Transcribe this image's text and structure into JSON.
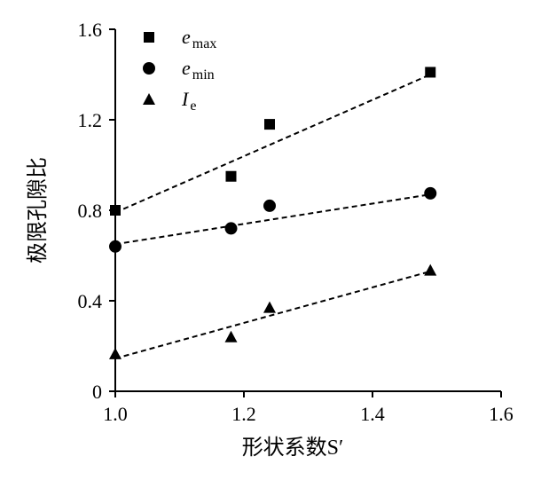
{
  "chart_data": {
    "type": "scatter",
    "title": "",
    "xlabel": "形状系数S′",
    "ylabel": "极限孔隙比",
    "xlim": [
      1.0,
      1.6
    ],
    "ylim": [
      0,
      1.6
    ],
    "xticks": [
      "1.0",
      "1.2",
      "1.4",
      "1.6"
    ],
    "yticks": [
      "0",
      "0.4",
      "0.8",
      "1.2",
      "1.6"
    ],
    "xtick_values": [
      1.0,
      1.2,
      1.4,
      1.6
    ],
    "ytick_values": [
      0,
      0.4,
      0.8,
      1.2,
      1.6
    ],
    "grid": false,
    "legend_placement": "top-left",
    "series": [
      {
        "name": "e",
        "sub": "max",
        "marker": "square",
        "x": [
          1.0,
          1.18,
          1.24,
          1.49
        ],
        "y": [
          0.8,
          0.95,
          1.18,
          1.41
        ],
        "trend": [
          [
            1.0,
            0.79
          ],
          [
            1.49,
            1.4
          ]
        ]
      },
      {
        "name": "e",
        "sub": "min",
        "marker": "circle",
        "x": [
          1.0,
          1.18,
          1.24,
          1.49
        ],
        "y": [
          0.64,
          0.72,
          0.82,
          0.875
        ],
        "trend": [
          [
            1.0,
            0.65
          ],
          [
            1.49,
            0.87
          ]
        ]
      },
      {
        "name": "I",
        "sub": "e",
        "marker": "triangle",
        "x": [
          1.0,
          1.18,
          1.24,
          1.49
        ],
        "y": [
          0.165,
          0.24,
          0.37,
          0.535
        ],
        "trend": [
          [
            1.0,
            0.145
          ],
          [
            1.49,
            0.53
          ]
        ]
      }
    ]
  }
}
